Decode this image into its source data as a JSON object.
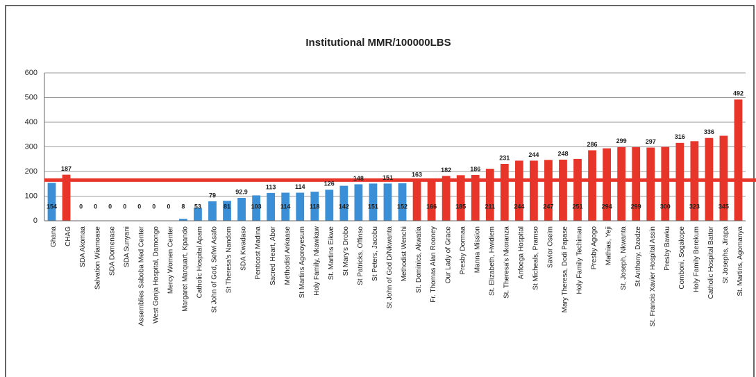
{
  "chart_data": {
    "type": "bar",
    "title": "Institutional MMR/100000LBS",
    "categories": [
      "Ghana",
      "CHAG",
      "SDA Akomaa",
      "Salvation Wiamoase",
      "SDA Domenase",
      "SDA Sunyani",
      "Assemblies Saboba Med Center",
      "West Gonja Hospital, Damongo",
      "Mercy Women Center",
      "Margaret Marquart, Kpando",
      "Catholic Hospital Apam",
      "St John of God, Sefwi Asafo",
      "St Theresa's Nandom",
      "SDA Kwadaso",
      "Penticost Madina",
      "Sacred Heart, Abor",
      "Methodist Ankaase",
      "St Martins Agoroyesum",
      "Holy Family, Nkawkaw",
      "St. Martins Eikwe",
      "St Mary's Drobo",
      "St Patricks, Offinso",
      "St Peters, Jacobu",
      "St John of God D/Nkwanta",
      "Methodist Wenchi",
      "St. Dominics, Akwatia",
      "Fr. Thomas Alan Rooney",
      "Our Lady of Grace",
      "Presby Dormaa",
      "Manna Mission",
      "St. Elizabeth, Hwidiem",
      "St. Theresa's Nkoranza",
      "Anfoega Hospital",
      "St Micheals, Pramso",
      "Savior Oseim",
      "Mary Theresa, Dodi Papase",
      "Holy Family Techiman",
      "Presby Agogo",
      "Mathias, Yeji",
      "St. Joseph, Nkwanta",
      "St Anthony, Dzodze",
      "St. Francis Xavier Hospital Assin",
      "Presby Bawku",
      "Comboni, Sogakope",
      "Holy Family Berekum",
      "Catholic Hospital Battor",
      "St Josephs, Jirapa",
      "St. Martins, Agomanya"
    ],
    "values": [
      154,
      187,
      0,
      0,
      0,
      0,
      0,
      0,
      0,
      8,
      53,
      79,
      81,
      92.9,
      103,
      113,
      114,
      114,
      118,
      126,
      142,
      148,
      151,
      151,
      152,
      163,
      166,
      182,
      185,
      186,
      211,
      231,
      244,
      244,
      247,
      248,
      251,
      286,
      294,
      299,
      299,
      297,
      300,
      316,
      323,
      336,
      345,
      492
    ],
    "colors": [
      "#3a8fd6",
      "#e8352a",
      "#3a8fd6",
      "#3a8fd6",
      "#3a8fd6",
      "#3a8fd6",
      "#3a8fd6",
      "#3a8fd6",
      "#3a8fd6",
      "#3a8fd6",
      "#3a8fd6",
      "#3a8fd6",
      "#3a8fd6",
      "#3a8fd6",
      "#3a8fd6",
      "#3a8fd6",
      "#3a8fd6",
      "#3a8fd6",
      "#3a8fd6",
      "#3a8fd6",
      "#3a8fd6",
      "#3a8fd6",
      "#3a8fd6",
      "#3a8fd6",
      "#3a8fd6",
      "#e8352a",
      "#e8352a",
      "#e8352a",
      "#e8352a",
      "#e8352a",
      "#e8352a",
      "#e8352a",
      "#e8352a",
      "#e8352a",
      "#e8352a",
      "#e8352a",
      "#e8352a",
      "#e8352a",
      "#e8352a",
      "#e8352a",
      "#e8352a",
      "#e8352a",
      "#e8352a",
      "#e8352a",
      "#e8352a",
      "#e8352a",
      "#e8352a",
      "#e8352a"
    ],
    "reference_line": {
      "value": 165,
      "color": "#e8352a"
    },
    "ylim": [
      0,
      600
    ],
    "yticks": [
      0,
      100,
      200,
      300,
      400,
      500,
      600
    ],
    "grid": true
  }
}
